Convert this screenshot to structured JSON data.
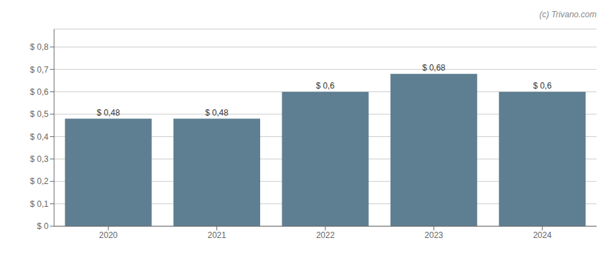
{
  "chart_data": {
    "type": "bar",
    "categories": [
      "2020",
      "2021",
      "2022",
      "2023",
      "2024"
    ],
    "values": [
      0.48,
      0.48,
      0.6,
      0.68,
      0.6
    ],
    "value_labels": [
      "$ 0,48",
      "$ 0,48",
      "$ 0,6",
      "$ 0,68",
      "$ 0,6"
    ],
    "data_labels": true,
    "color": "#5e7f91",
    "ylim": [
      0,
      0.88
    ],
    "yticks": [
      {
        "value": 0.0,
        "label": "$ 0"
      },
      {
        "value": 0.1,
        "label": "$ 0,1"
      },
      {
        "value": 0.2,
        "label": "$ 0,2"
      },
      {
        "value": 0.3,
        "label": "$ 0,3"
      },
      {
        "value": 0.4,
        "label": "$ 0,4"
      },
      {
        "value": 0.5,
        "label": "$ 0,5"
      },
      {
        "value": 0.6,
        "label": "$ 0,6"
      },
      {
        "value": 0.7,
        "label": "$ 0,7"
      },
      {
        "value": 0.8,
        "label": "$ 0,8"
      }
    ],
    "grid": true,
    "annotations": [
      "(c) Trivano.com"
    ]
  }
}
